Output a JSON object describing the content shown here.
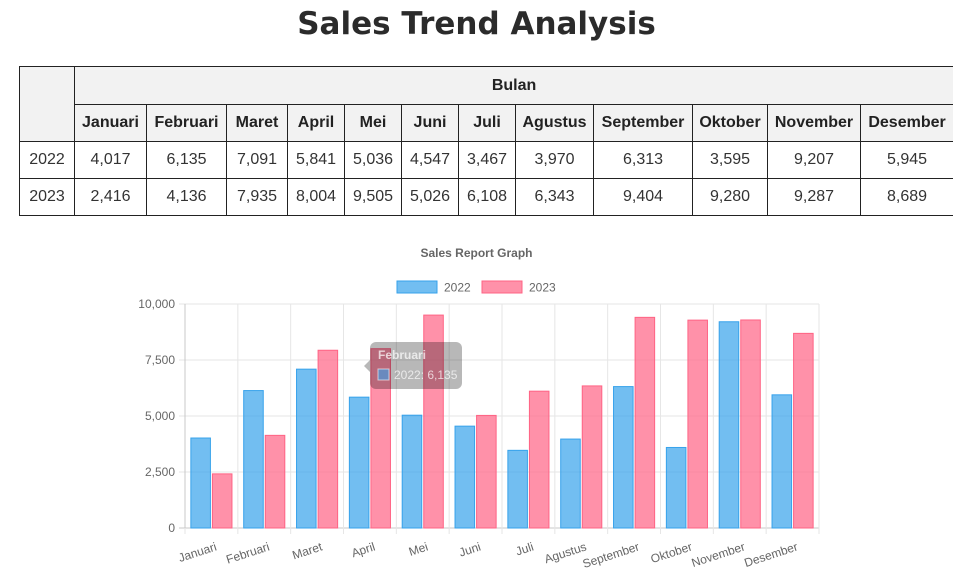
{
  "page": {
    "title": "Sales Trend Analysis"
  },
  "table": {
    "group_header": "Bulan",
    "months": [
      "Januari",
      "Februari",
      "Maret",
      "April",
      "Mei",
      "Juni",
      "Juli",
      "Agustus",
      "September",
      "Oktober",
      "November",
      "Desember"
    ],
    "rows": [
      {
        "year": "2022",
        "values": [
          "4,017",
          "6,135",
          "7,091",
          "5,841",
          "5,036",
          "4,547",
          "3,467",
          "3,970",
          "6,313",
          "3,595",
          "9,207",
          "5,945"
        ]
      },
      {
        "year": "2023",
        "values": [
          "2,416",
          "4,136",
          "7,935",
          "8,004",
          "9,505",
          "5,026",
          "6,108",
          "6,343",
          "9,404",
          "9,280",
          "9,287",
          "8,689"
        ]
      }
    ]
  },
  "chart_data": {
    "type": "bar",
    "title": "Sales Report Graph",
    "categories": [
      "Januari",
      "Februari",
      "Maret",
      "April",
      "Mei",
      "Juni",
      "Juli",
      "Agustus",
      "September",
      "Oktober",
      "November",
      "Desember"
    ],
    "series": [
      {
        "name": "2022",
        "values": [
          4017,
          6135,
          7091,
          5841,
          5036,
          4547,
          3467,
          3970,
          6313,
          3595,
          9207,
          5945
        ],
        "color": "#36a2eb"
      },
      {
        "name": "2023",
        "values": [
          2416,
          4136,
          7935,
          8004,
          9505,
          5026,
          6108,
          6343,
          9404,
          9280,
          9287,
          8689
        ],
        "color": "#ff6384"
      }
    ],
    "ylim": [
      0,
      10000
    ],
    "yticks": [
      0,
      2500,
      5000,
      7500,
      10000
    ],
    "ytick_labels": [
      "0",
      "2,500",
      "5,000",
      "7,500",
      "10,000"
    ],
    "xlabel": "",
    "ylabel": "",
    "grid": true,
    "legend_position": "top",
    "tooltip": {
      "title": "Februari",
      "label": "2022: 6,135"
    }
  }
}
